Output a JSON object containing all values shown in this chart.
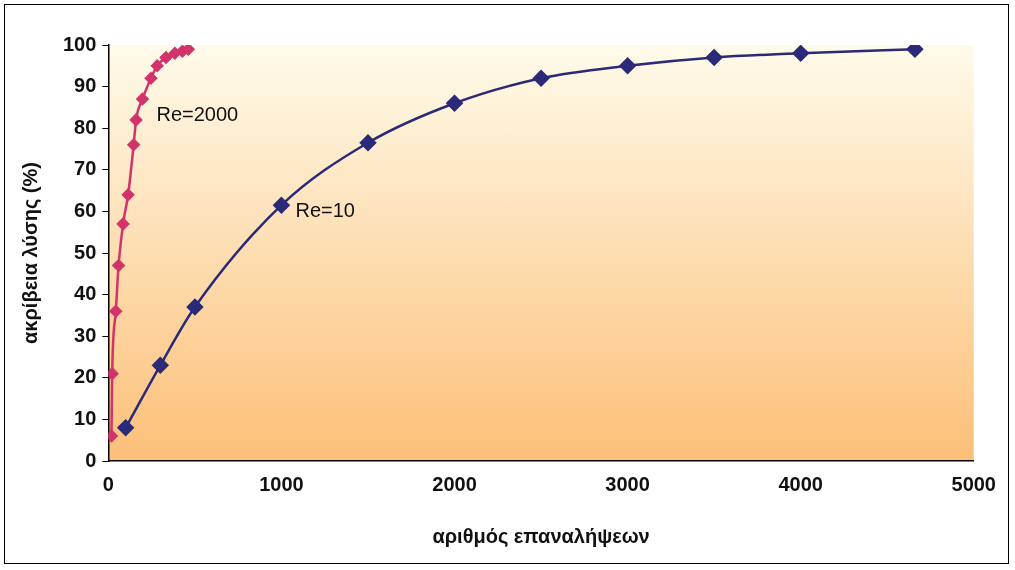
{
  "chart_data": {
    "type": "line",
    "xlabel": "αριθμός επαναλήψεων",
    "ylabel": "ακρίβεια λύσης (%)",
    "xlim": [
      0,
      5000
    ],
    "xticks": [
      0,
      1000,
      2000,
      3000,
      4000,
      5000
    ],
    "ylim": [
      0,
      100
    ],
    "yticks": [
      0,
      10,
      20,
      30,
      40,
      50,
      60,
      70,
      80,
      90,
      100
    ],
    "grid": false,
    "legend": false,
    "marker": "diamond",
    "line_style": "solid",
    "series": [
      {
        "name": "Re=2000",
        "color": "#d2336a",
        "x": [
          18,
          22,
          43,
          59,
          85,
          114,
          146,
          160,
          197,
          246,
          282,
          333,
          384,
          428,
          462
        ],
        "values": [
          6,
          21,
          36,
          47,
          57,
          64,
          76,
          82,
          87,
          92,
          95,
          97,
          98,
          98.5,
          99
        ]
      },
      {
        "name": "Re=10",
        "color": "#2b2a78",
        "x": [
          100,
          300,
          500,
          1000,
          1500,
          2000,
          2500,
          3000,
          3500,
          4000,
          4660
        ],
        "values": [
          8,
          23,
          37,
          61.5,
          76.5,
          86,
          92,
          95,
          97,
          98,
          99
        ]
      }
    ]
  }
}
